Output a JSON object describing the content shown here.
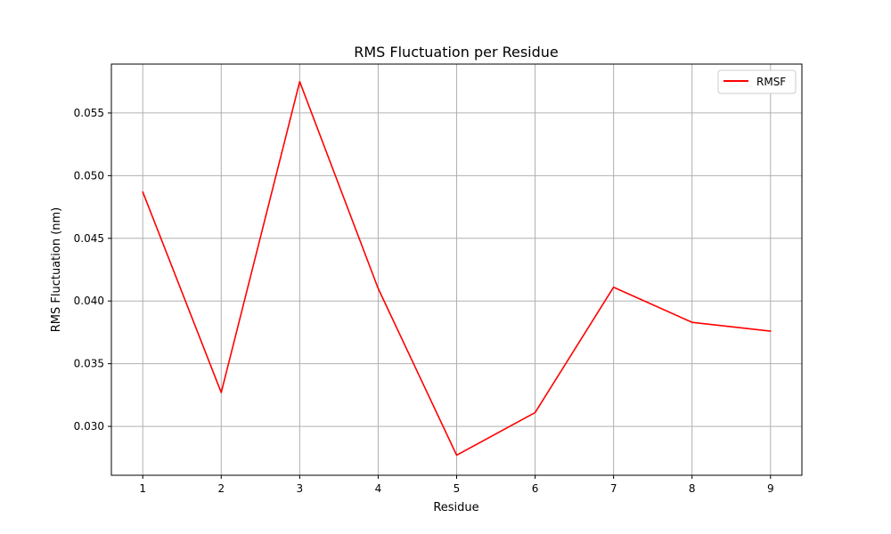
{
  "chart_data": {
    "type": "line",
    "title": "RMS Fluctuation per Residue",
    "xlabel": "Residue",
    "ylabel": "RMS Fluctuation (nm)",
    "x": [
      1,
      2,
      3,
      4,
      5,
      6,
      7,
      8,
      9
    ],
    "series": [
      {
        "name": "RMSF",
        "color": "#ff0000",
        "values": [
          0.0487,
          0.0327,
          0.0575,
          0.041,
          0.0277,
          0.0311,
          0.0411,
          0.0383,
          0.0376
        ]
      }
    ],
    "xlim": [
      0.6,
      9.4
    ],
    "ylim": [
      0.0261,
      0.0589
    ],
    "xticks": [
      1,
      2,
      3,
      4,
      5,
      6,
      7,
      8,
      9
    ],
    "xtick_labels": [
      "1",
      "2",
      "3",
      "4",
      "5",
      "6",
      "7",
      "8",
      "9"
    ],
    "yticks": [
      0.03,
      0.035,
      0.04,
      0.045,
      0.05,
      0.055
    ],
    "ytick_labels": [
      "0.030",
      "0.035",
      "0.040",
      "0.045",
      "0.050",
      "0.055"
    ],
    "grid": true,
    "legend": "top-right"
  }
}
